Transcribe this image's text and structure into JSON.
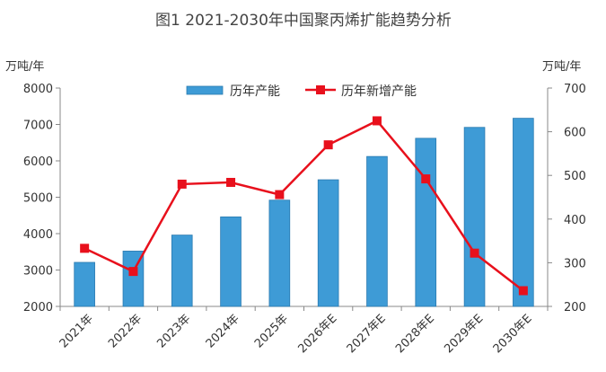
{
  "chart_data": {
    "type": "bar+line",
    "title": "图1  2021-2030年中国聚丙烯扩能趋势分析",
    "categories": [
      "2021年",
      "2022年",
      "2023年",
      "2024年",
      "2025年",
      "2026年E",
      "2027年E",
      "2028年E",
      "2029年E",
      "2030年E"
    ],
    "left_axis": {
      "unit": "万吨/年",
      "ylim": [
        2000,
        8000
      ],
      "ticks": [
        "8000",
        "7000",
        "6000",
        "5000",
        "4000",
        "3000",
        "2000"
      ]
    },
    "right_axis": {
      "unit": "万吨/年",
      "ylim": [
        200,
        700
      ],
      "ticks": [
        "700",
        "600",
        "500",
        "400",
        "300",
        "200"
      ]
    },
    "series": [
      {
        "name": "历年产能",
        "type": "bar",
        "axis": "left",
        "color": "#3e9bd6",
        "values": [
          3210,
          3520,
          3960,
          4460,
          4920,
          5480,
          6120,
          6620,
          6920,
          7170
        ]
      },
      {
        "name": "历年新增产能",
        "type": "line",
        "axis": "right",
        "color": "#e8101c",
        "values": [
          333,
          280,
          480,
          484,
          456,
          570,
          625,
          492,
          322,
          236
        ]
      }
    ],
    "legend_position": "top-center",
    "grid": false
  }
}
